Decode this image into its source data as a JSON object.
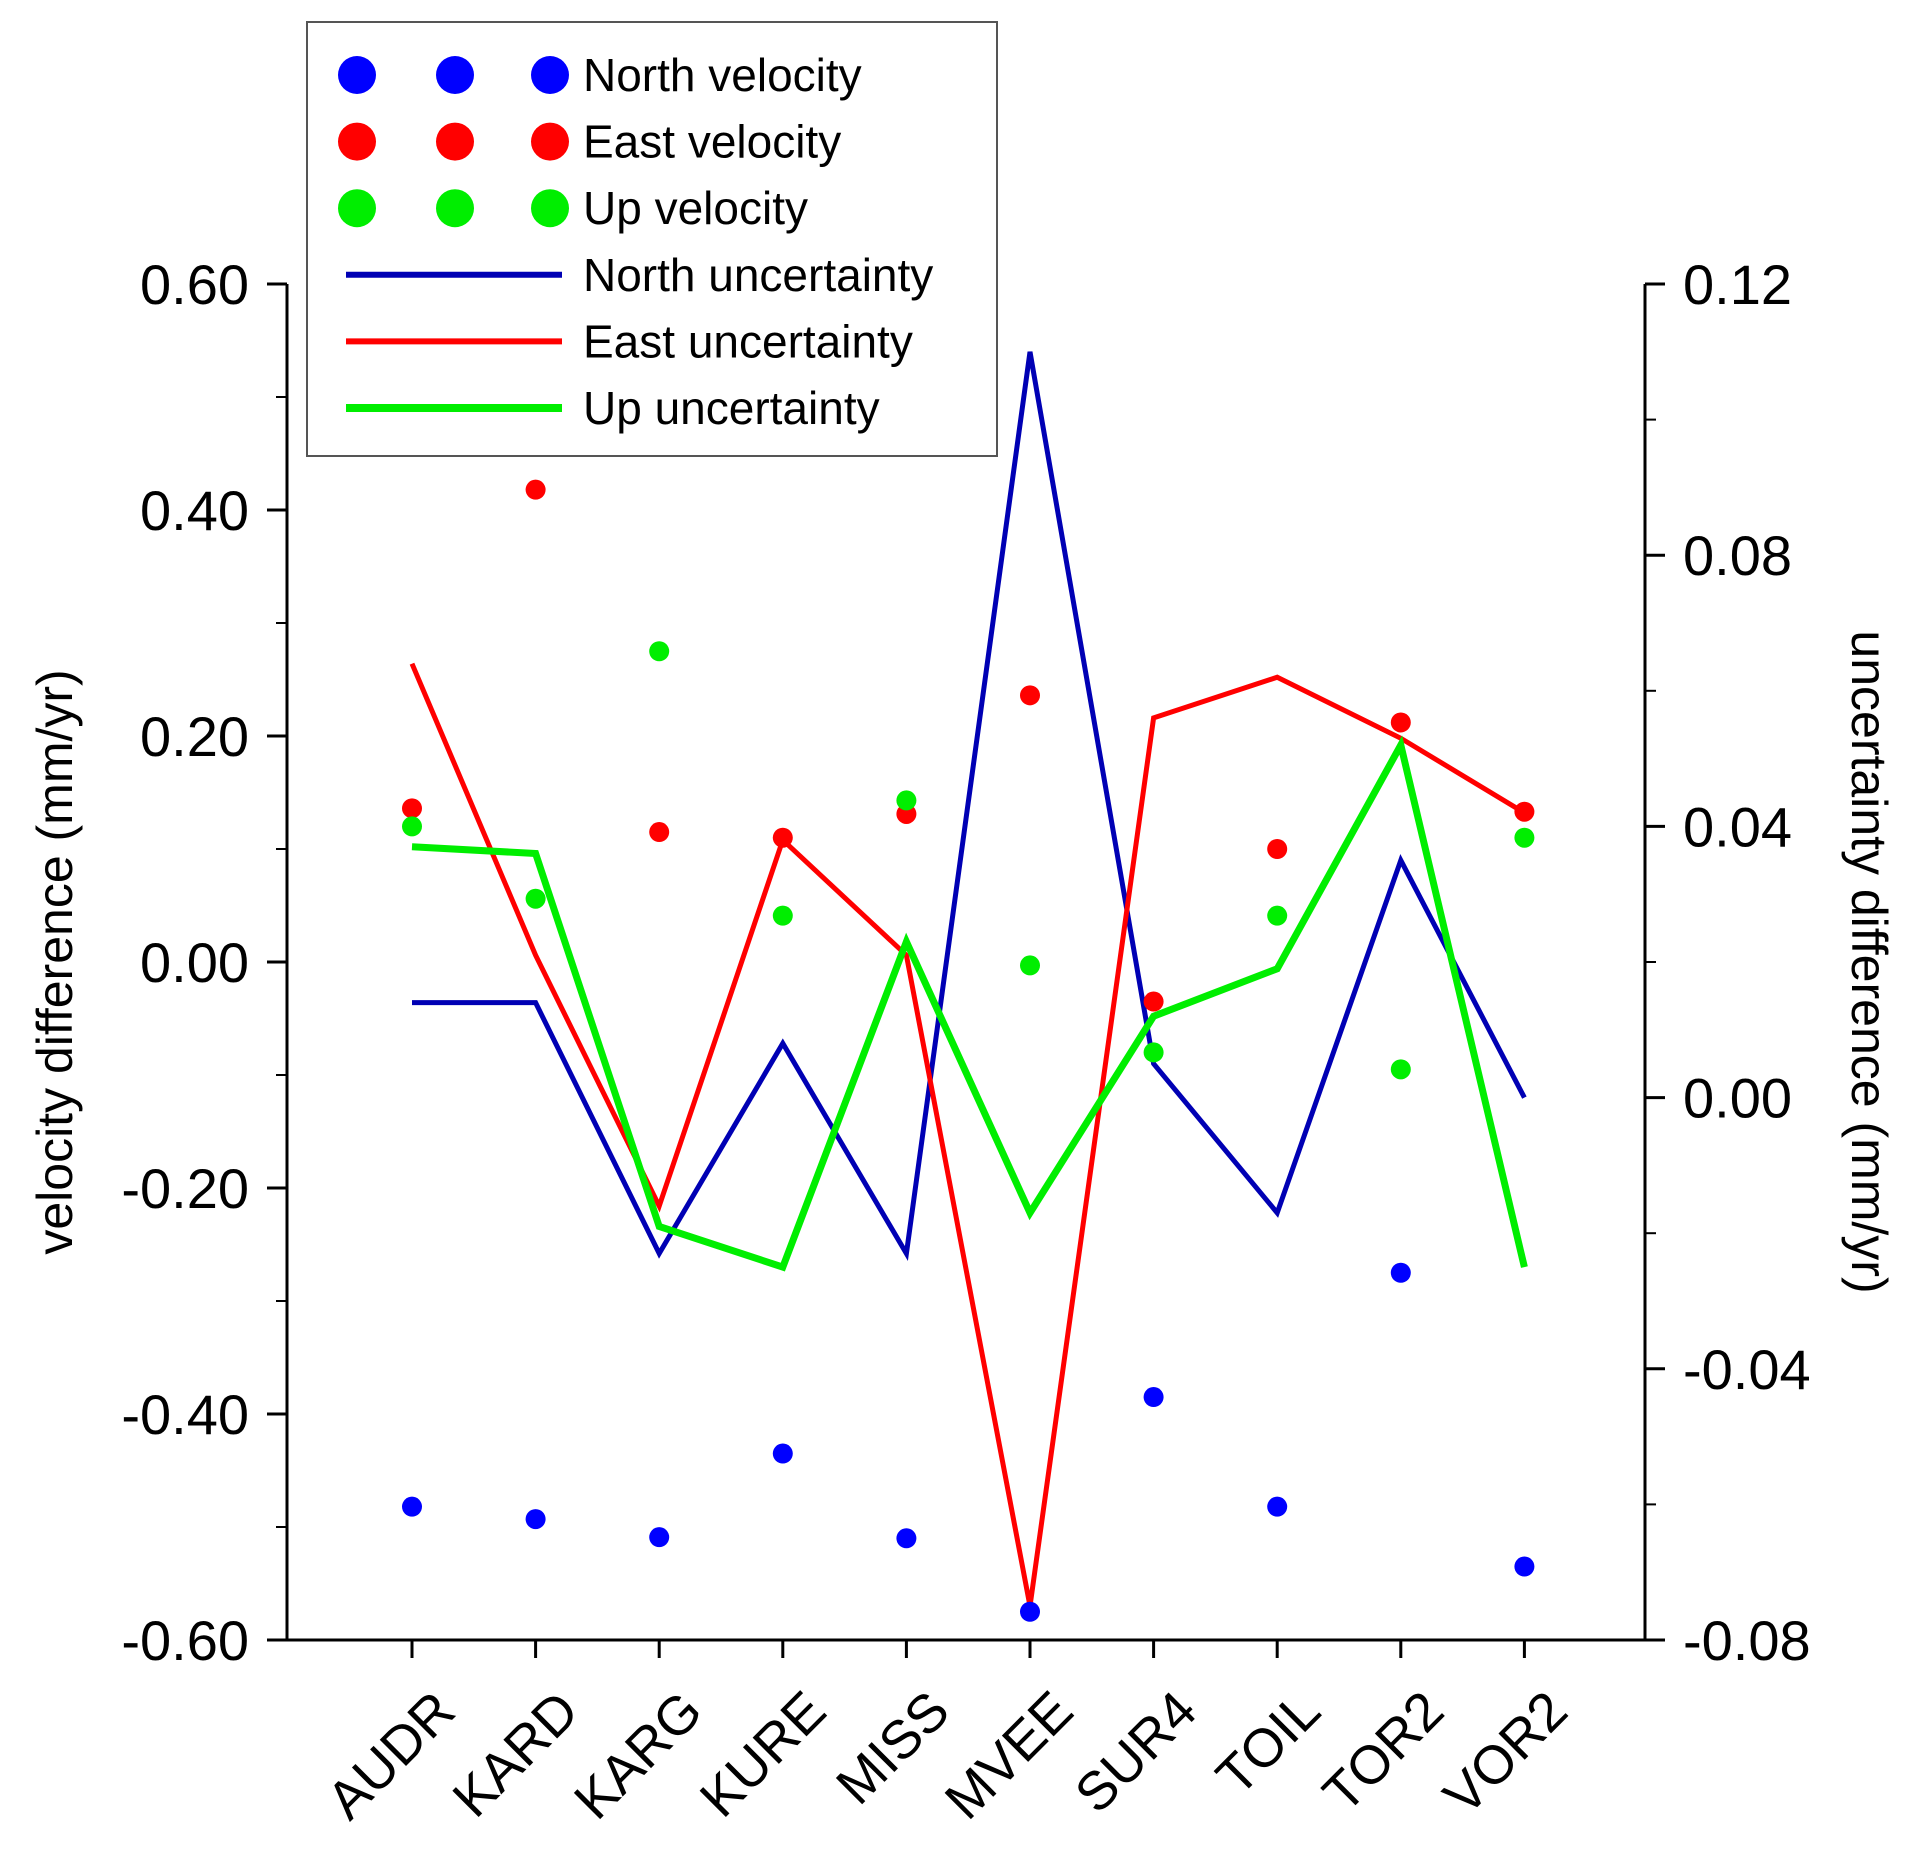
{
  "chart_data": {
    "type": "line",
    "title": "",
    "categories": [
      "AUDR",
      "KARD",
      "KARG",
      "KURE",
      "MISS",
      "MVEE",
      "SUR4",
      "TOIL",
      "TOR2",
      "VOR2"
    ],
    "xlabel": "",
    "ylabel": "velocity difference (mm/yr)",
    "y2label": "uncertainty difference (mm/yr)",
    "ylim": [
      -0.6,
      0.6
    ],
    "y2lim": [
      -0.08,
      0.12
    ],
    "yticks": [
      "-0.60",
      "-0.40",
      "-0.20",
      "0.00",
      "0.20",
      "0.40",
      "0.60"
    ],
    "y2ticks": [
      "-0.08",
      "-0.04",
      "0.00",
      "0.04",
      "0.08",
      "0.12"
    ],
    "legend_position": "top-left",
    "scatter_series": [
      {
        "name": "North velocity",
        "axis": "left",
        "color": "#0000ff",
        "values": [
          -0.482,
          -0.493,
          -0.509,
          -0.435,
          -0.51,
          -0.575,
          -0.385,
          -0.482,
          -0.275,
          -0.535
        ]
      },
      {
        "name": "East velocity",
        "axis": "left",
        "color": "#ff0000",
        "values": [
          0.136,
          0.418,
          0.115,
          0.11,
          0.131,
          0.236,
          -0.035,
          0.1,
          0.212,
          0.133
        ]
      },
      {
        "name": "Up velocity",
        "axis": "left",
        "color": "#00ee00",
        "values": [
          0.12,
          0.056,
          0.275,
          0.041,
          0.143,
          -0.003,
          -0.08,
          0.041,
          -0.095,
          0.11
        ]
      }
    ],
    "line_series": [
      {
        "name": "North uncertainty",
        "axis": "right",
        "color": "#0000b4",
        "values": [
          0.014,
          0.014,
          -0.023,
          0.008,
          -0.023,
          0.11,
          0.005,
          -0.017,
          0.035,
          0.0
        ]
      },
      {
        "name": "East uncertainty",
        "axis": "right",
        "color": "#ff0000",
        "values": [
          0.064,
          0.021,
          -0.016,
          0.038,
          0.021,
          -0.075,
          0.056,
          0.062,
          0.053,
          0.042
        ]
      },
      {
        "name": "Up uncertainty",
        "axis": "right",
        "color": "#00ee00",
        "values": [
          0.037,
          0.036,
          -0.019,
          -0.025,
          0.023,
          -0.017,
          0.012,
          0.019,
          0.052,
          -0.025
        ]
      }
    ]
  }
}
